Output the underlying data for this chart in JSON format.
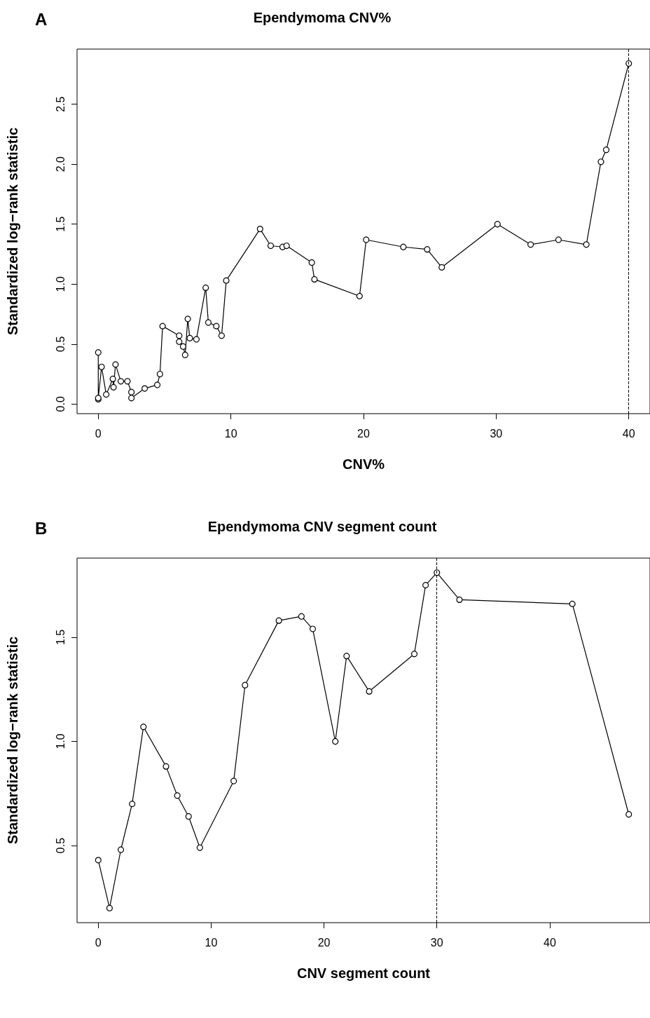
{
  "chart_data": [
    {
      "type": "line",
      "title": "Ependymoma CNV%",
      "xlabel": "CNV%",
      "ylabel": "Standardized log−rank statistic",
      "annotations": [
        "A"
      ],
      "x": [
        0,
        0,
        0,
        0.25,
        0.6,
        1.1,
        1.15,
        1.3,
        1.7,
        2.2,
        2.5,
        2.5,
        3.5,
        4.45,
        4.65,
        4.85,
        6.1,
        6.1,
        6.4,
        6.55,
        6.75,
        6.9,
        7.4,
        8.1,
        8.3,
        8.9,
        9.3,
        9.65,
        12.2,
        13.0,
        13.9,
        14.2,
        16.1,
        16.3,
        19.7,
        20.2,
        23.0,
        24.8,
        25.9,
        30.1,
        32.6,
        34.7,
        36.8,
        37.9,
        38.3,
        40.0
      ],
      "series": [
        {
          "color": "#000000",
          "values": [
            0.43,
            0.04,
            0.05,
            0.31,
            0.08,
            0.21,
            0.14,
            0.33,
            0.19,
            0.19,
            0.1,
            0.05,
            0.13,
            0.16,
            0.25,
            0.65,
            0.57,
            0.52,
            0.48,
            0.41,
            0.71,
            0.55,
            0.54,
            0.97,
            0.68,
            0.65,
            0.57,
            1.03,
            1.46,
            1.32,
            1.31,
            1.32,
            1.18,
            1.04,
            0.9,
            1.37,
            1.31,
            1.29,
            1.14,
            1.5,
            1.33,
            1.37,
            1.33,
            2.02,
            2.12,
            2.84
          ]
        }
      ],
      "xlim": [
        -1.6,
        41.6
      ],
      "xticks": [
        0,
        10,
        20,
        30,
        40
      ],
      "ylim": [
        -0.08,
        2.96
      ],
      "yticks": [
        {
          "value": 0,
          "label": "0.0"
        },
        0.5,
        {
          "value": 1,
          "label": "1.0"
        },
        1.5,
        {
          "value": 2,
          "label": "2.0"
        },
        2.5
      ],
      "ref_lines": [
        {
          "axis": "x",
          "value": 40,
          "line_style": "dashed"
        }
      ],
      "marker": "circle",
      "line_style": "solid",
      "grid": false
    },
    {
      "type": "line",
      "title": "Ependymoma CNV segment count",
      "xlabel": "CNV segment count",
      "ylabel": "Standardized log−rank statistic",
      "annotations": [
        "B"
      ],
      "x": [
        0,
        1,
        2,
        3,
        4,
        6,
        7,
        8,
        9,
        12,
        13,
        16,
        18,
        19,
        21,
        22,
        24,
        28,
        29,
        30,
        32,
        42,
        47
      ],
      "series": [
        {
          "color": "#000000",
          "values": [
            0.43,
            0.2,
            0.48,
            0.7,
            1.07,
            0.88,
            0.74,
            0.64,
            0.49,
            0.81,
            1.27,
            1.58,
            1.6,
            1.54,
            1.0,
            1.41,
            1.24,
            1.42,
            1.75,
            1.81,
            1.68,
            1.66,
            0.65
          ]
        }
      ],
      "xlim": [
        -1.88,
        48.88
      ],
      "xticks": [
        0,
        10,
        20,
        30,
        40
      ],
      "ylim": [
        0.13,
        1.88
      ],
      "yticks": [
        0.5,
        {
          "value": 1,
          "label": "1.0"
        },
        1.5
      ],
      "ref_lines": [
        {
          "axis": "x",
          "value": 30,
          "line_style": "dashed"
        }
      ],
      "marker": "circle",
      "line_style": "solid",
      "grid": false
    }
  ]
}
